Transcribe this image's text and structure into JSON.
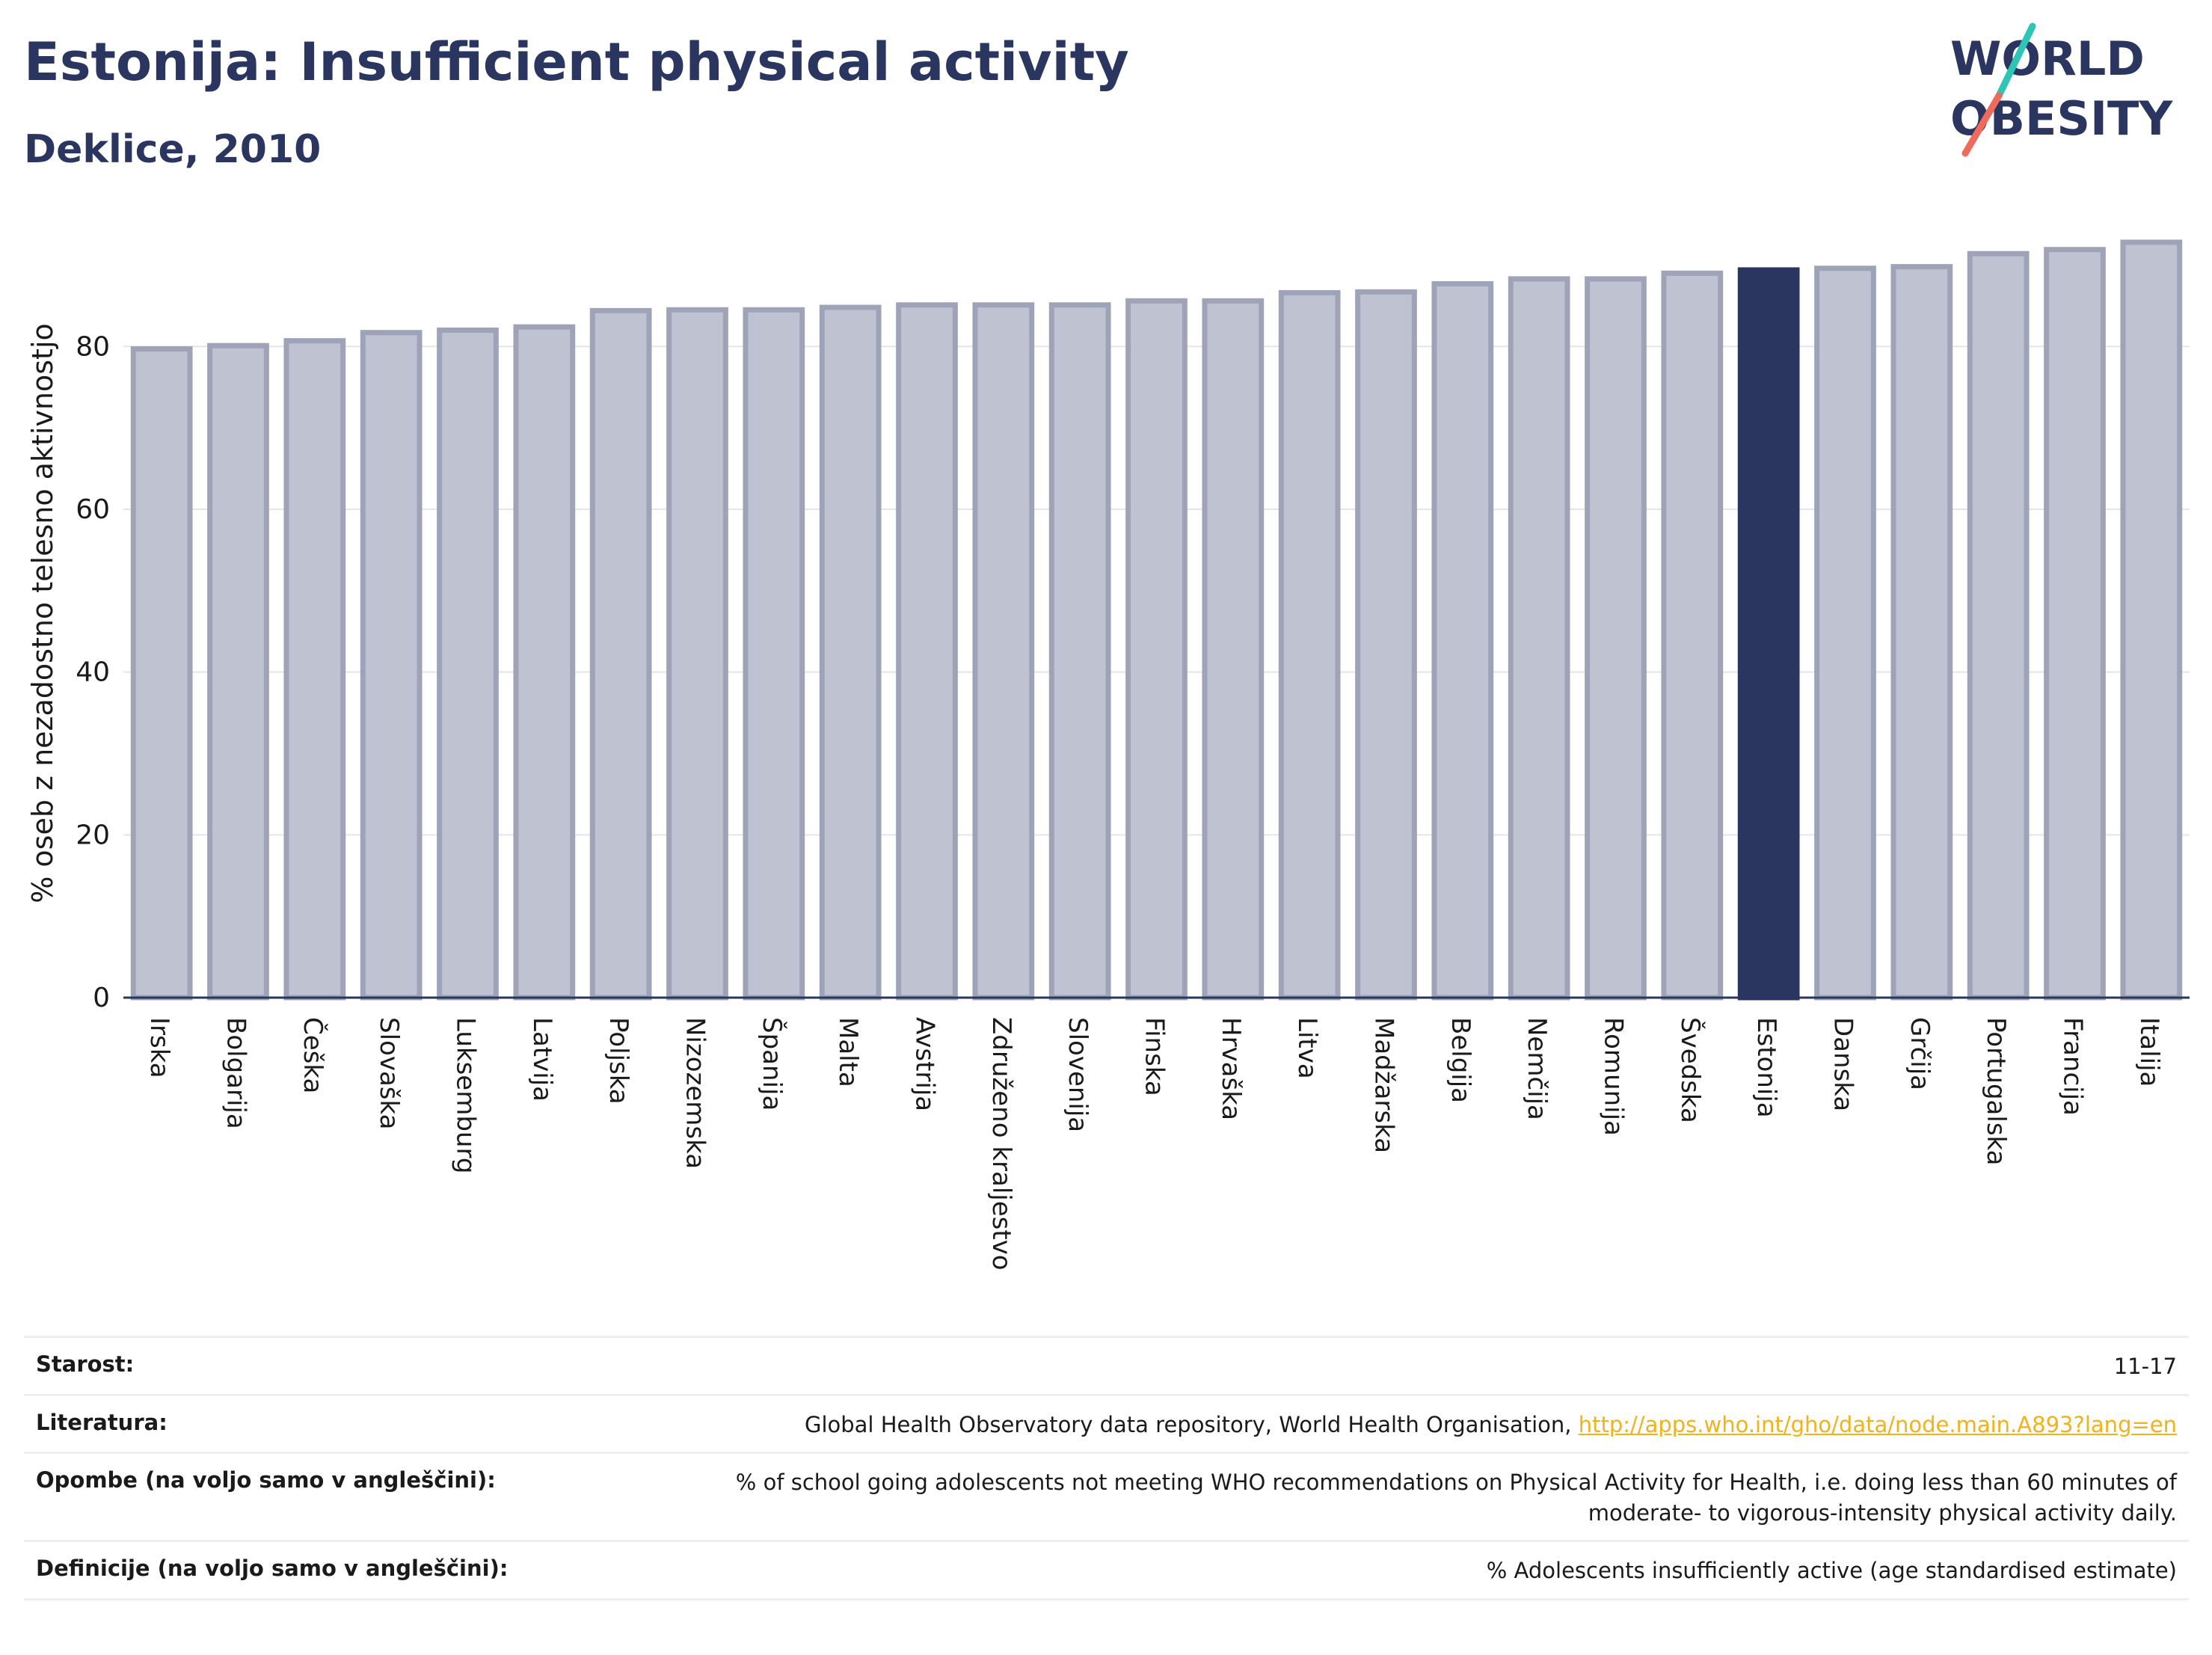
{
  "header": {
    "title": "Estonija: Insufficient physical activity",
    "subtitle": "Deklice, 2010"
  },
  "logo": {
    "line1": "WORLD",
    "line2": "OBESITY"
  },
  "colors": {
    "bar": "#bfc2d0",
    "bar_border": "#9ea3b8",
    "highlight": "#2a3560",
    "text": "#2a3560"
  },
  "chart_data": {
    "type": "bar",
    "categories": [
      "Irska",
      "Bolgarija",
      "Češka",
      "Slovaška",
      "Luksemburg",
      "Latvija",
      "Poljska",
      "Nizozemska",
      "Španija",
      "Malta",
      "Avstrija",
      "Združeno kraljestvo",
      "Slovenija",
      "Finska",
      "Hrvaška",
      "Litva",
      "Madžarska",
      "Belgija",
      "Nemčija",
      "Romunija",
      "Švedska",
      "Estonija",
      "Danska",
      "Grčija",
      "Portugalska",
      "Francija",
      "Italija"
    ],
    "values": [
      79.7,
      80.1,
      80.7,
      81.7,
      82.0,
      82.4,
      84.4,
      84.5,
      84.5,
      84.8,
      85.1,
      85.1,
      85.1,
      85.6,
      85.6,
      86.6,
      86.7,
      87.7,
      88.3,
      88.3,
      89.0,
      89.4,
      89.6,
      89.8,
      91.4,
      91.9,
      92.8
    ],
    "highlight": "Estonija",
    "ylabel": "% oseb z nezadostno telesno aktivnostjo",
    "xlabel": "",
    "ylim": [
      0,
      95
    ],
    "yticks": [
      0,
      20,
      40,
      60,
      80
    ],
    "grid": true
  },
  "meta": [
    {
      "label": "Starost:",
      "value": "11-17"
    },
    {
      "label": "Literatura:",
      "value": "Global Health Observatory data repository, World Health Organisation, ",
      "link": "http://apps.who.int/gho/data/node.main.A893?lang=en"
    },
    {
      "label": "Opombe (na voljo samo v angleščini):",
      "value": "% of school going adolescents not meeting WHO recommendations on Physical Activity for Health, i.e. doing less than 60 minutes of moderate- to vigorous-intensity physical activity daily."
    },
    {
      "label": "Definicije (na voljo samo v angleščini):",
      "value": "% Adolescents insufficiently active (age standardised estimate)"
    }
  ]
}
